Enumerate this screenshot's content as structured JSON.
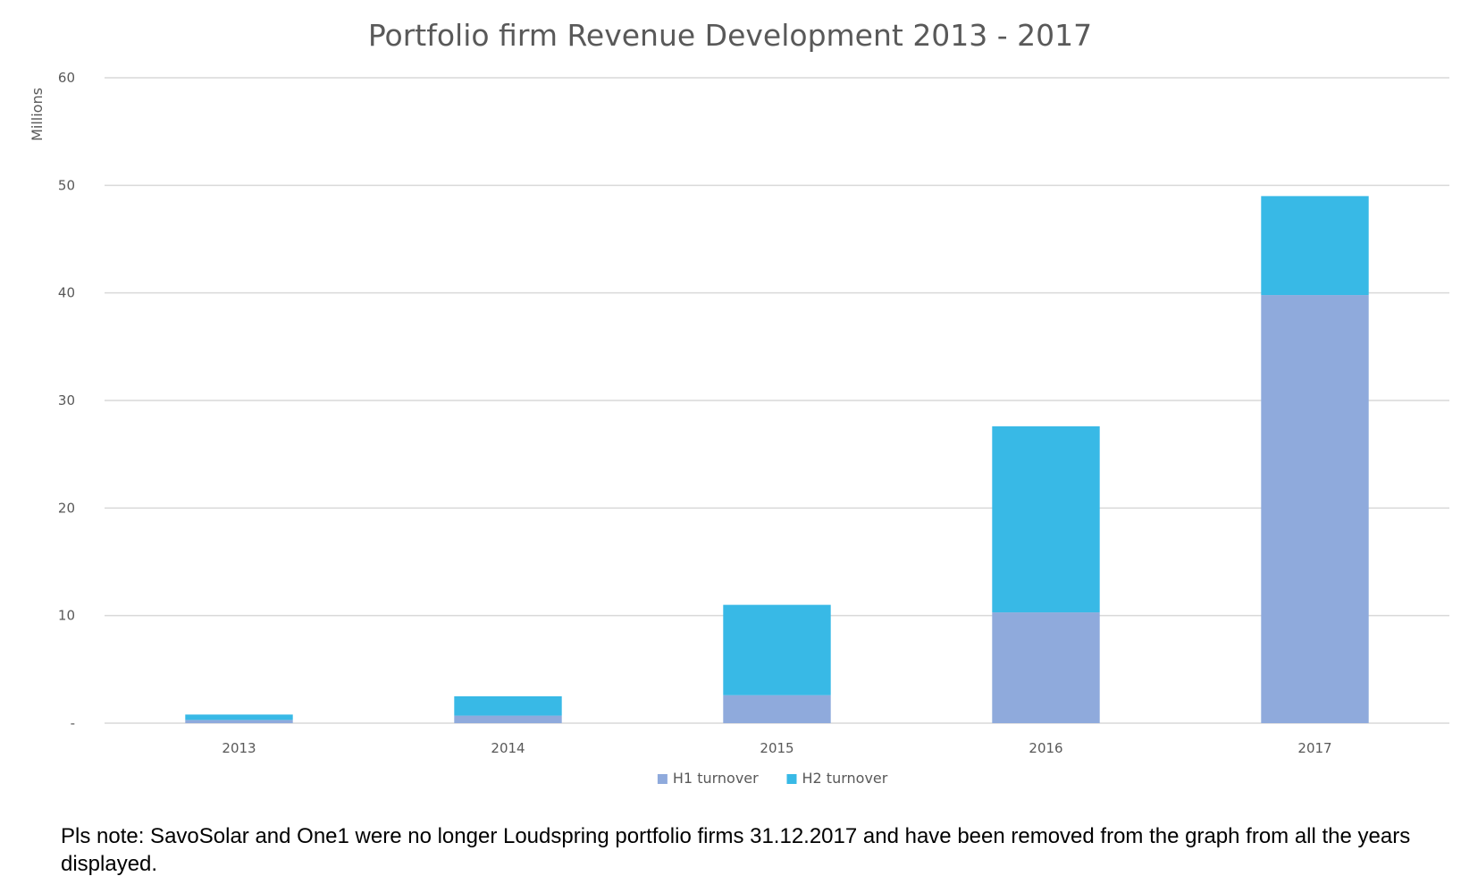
{
  "chart_data": {
    "type": "bar",
    "stacked": true,
    "title": "Portfolio firm Revenue Development 2013 - 2017",
    "xlabel": "",
    "ylabel": "Millions",
    "ylim": [
      0,
      60
    ],
    "yticks": [
      {
        "value": 0,
        "label": "-"
      },
      {
        "value": 10,
        "label": "10"
      },
      {
        "value": 20,
        "label": "20"
      },
      {
        "value": 30,
        "label": "30"
      },
      {
        "value": 40,
        "label": "40"
      },
      {
        "value": 50,
        "label": "50"
      },
      {
        "value": 60,
        "label": "60"
      }
    ],
    "categories": [
      "2013",
      "2014",
      "2015",
      "2016",
      "2017"
    ],
    "series": [
      {
        "name": "H1 turnover",
        "color": "#8faadc",
        "values": [
          0.3,
          0.7,
          2.6,
          10.3,
          39.8
        ]
      },
      {
        "name": "H2 turnover",
        "color": "#38b9e6",
        "values": [
          0.5,
          1.8,
          8.4,
          17.3,
          9.2
        ]
      }
    ],
    "grid": true,
    "legend_position": "bottom"
  },
  "note": "Pls note: SavoSolar and One1 were no longer Loudspring portfolio firms 31.12.2017 and have been removed from the graph from all the years displayed."
}
